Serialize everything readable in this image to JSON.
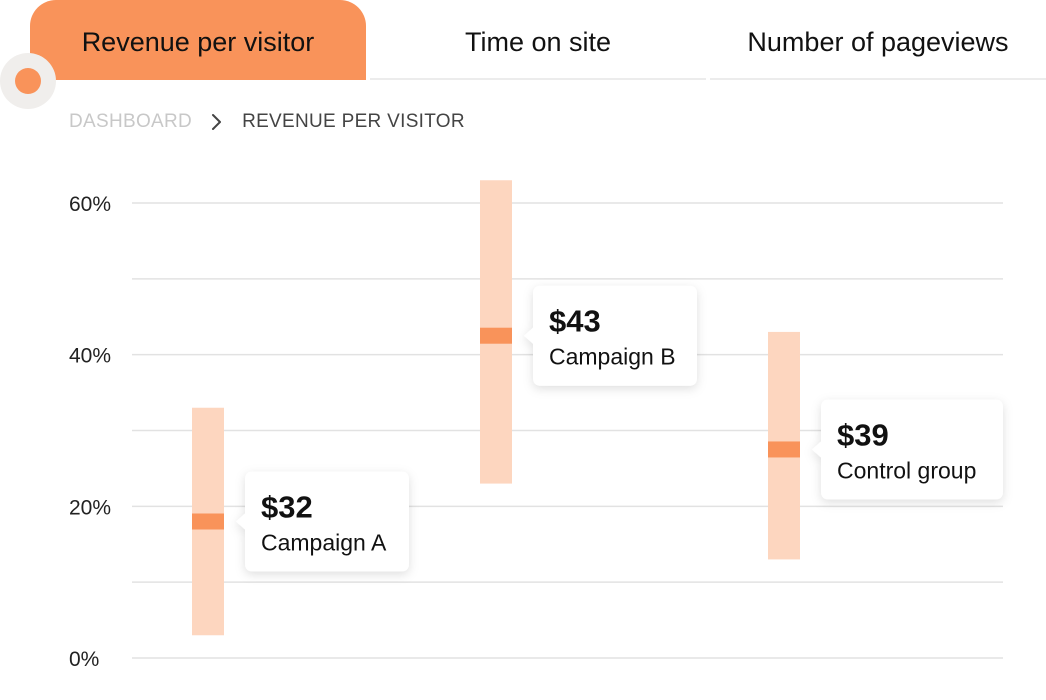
{
  "tabs": [
    {
      "label": "Revenue per visitor",
      "active": true
    },
    {
      "label": "Time on site",
      "active": false
    },
    {
      "label": "Number of pageviews",
      "active": false
    }
  ],
  "breadcrumb": {
    "items": [
      "DASHBOARD",
      "REVENUE PER VISITOR"
    ],
    "separator_icon": "chevron-right-icon"
  },
  "colors": {
    "accent": "#f9935a",
    "range_fill": "#fdd6bf",
    "gridline": "#e2e2e2"
  },
  "chart_data": {
    "type": "range",
    "title": "",
    "xlabel": "",
    "ylabel": "",
    "ylim": [
      0,
      60
    ],
    "y_ticks": [
      0,
      20,
      40,
      60
    ],
    "y_tick_labels": [
      "0%",
      "20%",
      "40%",
      "60%"
    ],
    "grid": true,
    "series": [
      {
        "name": "Campaign A",
        "low": 3,
        "high": 33,
        "mid": 18,
        "label_value": "$32"
      },
      {
        "name": "Campaign B",
        "low": 23,
        "high": 63,
        "mid": 42.5,
        "label_value": "$43"
      },
      {
        "name": "Control group",
        "low": 13,
        "high": 43,
        "mid": 27.5,
        "label_value": "$39"
      }
    ]
  }
}
